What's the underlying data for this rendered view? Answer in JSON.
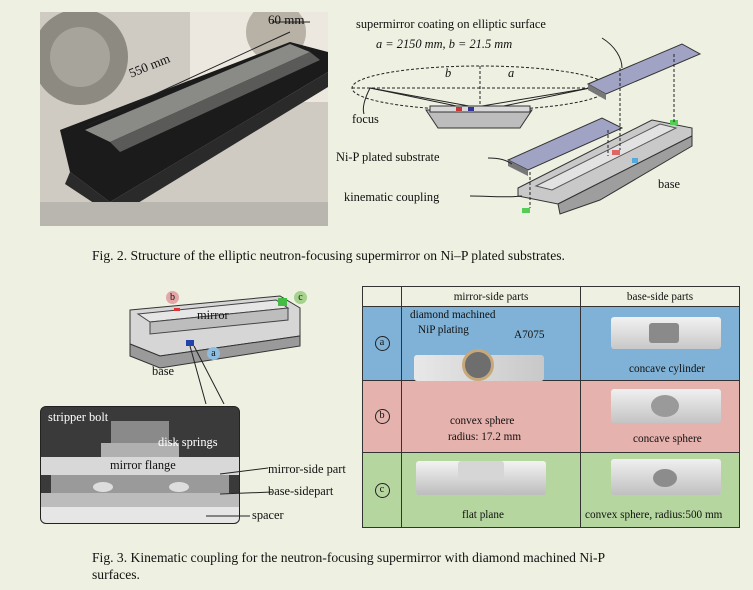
{
  "fig2": {
    "photo_dims": {
      "length": "550 mm",
      "width": "60 mm"
    },
    "coating_line1": "supermirror coating on elliptic surface",
    "coating_line2": "a = 2150 mm, b = 21.5 mm",
    "ellipse_b": "b",
    "ellipse_a": "a",
    "focus": "focus",
    "substrate": "Ni-P plated substrate",
    "kinematic": "kinematic coupling",
    "base": "base",
    "caption": "Fig. 2. Structure of the elliptic neutron-focusing supermirror on Ni–P plated substrates."
  },
  "fig3": {
    "badge_b": "b",
    "badge_c": "c",
    "badge_a": "a",
    "mirror": "mirror",
    "base": "base",
    "stripper_bolt": "stripper bolt",
    "disk_springs": "disk springs",
    "mirror_flange": "mirror flange",
    "mirror_side_part": "mirror-side part",
    "base_sidepart": "base-sidepart",
    "spacer": "spacer",
    "table": {
      "col_mirror": "mirror-side parts",
      "col_base": "base-side parts",
      "rows": [
        {
          "id": "a",
          "color": "#7fb2d6",
          "mirror_labels": [
            "diamond machined",
            "NiP plating",
            "A7075"
          ],
          "base_label": "concave cylinder"
        },
        {
          "id": "b",
          "color": "#e6b2ad",
          "mirror_label1": "convex sphere",
          "mirror_label2": "radius: 17.2 mm",
          "base_label": "concave sphere"
        },
        {
          "id": "c",
          "color": "#b6d69f",
          "mirror_label": "flat plane",
          "base_label": "convex sphere, radius:500 mm"
        }
      ]
    },
    "caption_line1": "Fig. 3. Kinematic coupling for the neutron-focusing supermirror with diamond machined Ni-P",
    "caption_line2": "surfaces."
  },
  "colors": {
    "row_a": "#7fb2d6",
    "row_b": "#e6b2ad",
    "row_c": "#b6d69f",
    "background": "#eef0e2"
  }
}
